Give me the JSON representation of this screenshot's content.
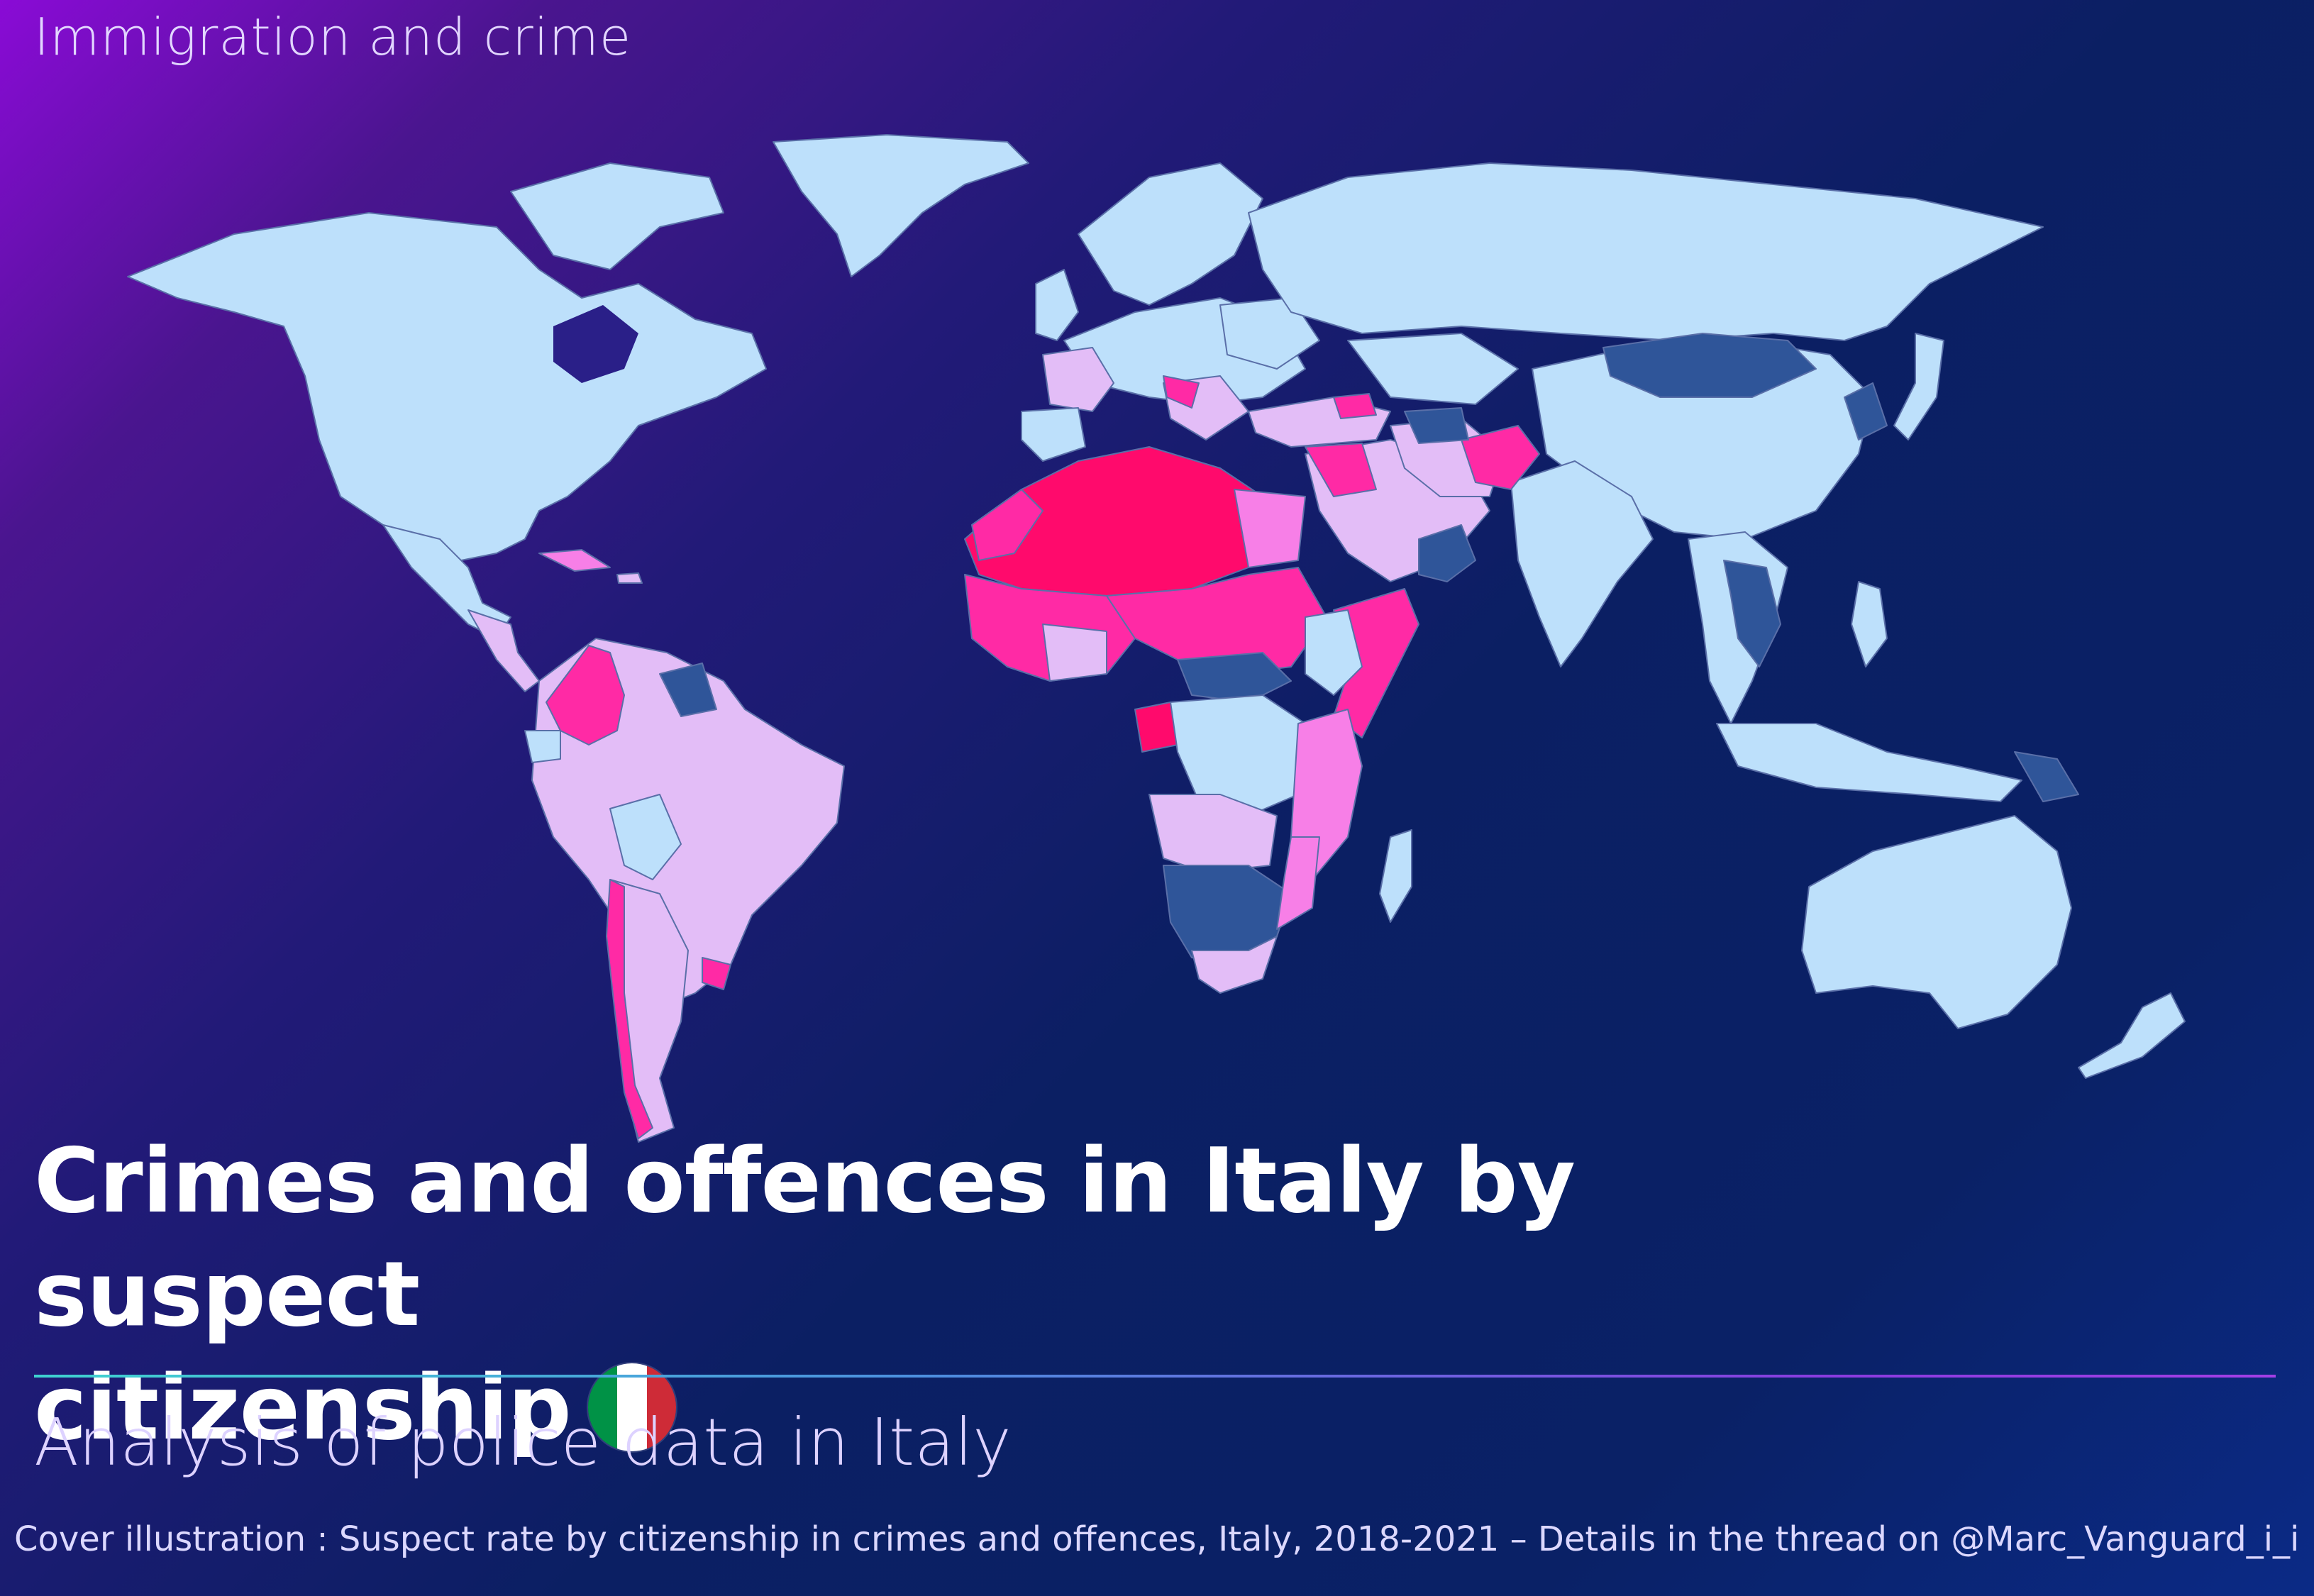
{
  "header": {
    "kicker": "Immigration and crime"
  },
  "title": {
    "line1": "Crimes and offences in Italy by suspect",
    "line2": "citizenship"
  },
  "flag": {
    "name": "italy-flag",
    "colors": [
      "#009246",
      "#ffffff",
      "#ce2b37"
    ]
  },
  "subtitle": "Analysis of police data in Italy",
  "caption": "Cover illustration : Suspect rate by citizenship in crimes and offences, Italy, 2018-2021 – Details in the thread on @Marc_Vanguard_i_i",
  "map": {
    "colors": {
      "dark_blue": "#2f5599",
      "light_blue": "#bde0fb",
      "light_purple": "#e3bdf7",
      "pink": "#f77fe7",
      "hot_pink": "#ff2aa5",
      "deep_pink": "#ff0a6c"
    },
    "dark_blue": [
      "Mongolia",
      "Vietnam",
      "Laos",
      "Cambodia",
      "Japan",
      "Guyana",
      "Suriname",
      "French Guiana",
      "Papua New Guinea",
      "Namibia",
      "Botswana",
      "South Africa",
      "Central African Republic",
      "South Sudan",
      "Mozambique",
      "Oman",
      "Turkmenistan",
      "Korea"
    ],
    "light_purple": [
      "Brazil",
      "Peru",
      "Argentina",
      "Saudi Arabia",
      "Iran",
      "Turkey",
      "Angola",
      "Zambia",
      "Spain",
      "France",
      "Egypt region",
      "Pakistan"
    ],
    "pink": [
      "Chile",
      "Tanzania",
      "Kenya",
      "Madagascar neighbours",
      "Sudan region",
      "Malawi"
    ],
    "hot_pink": [
      "Colombia",
      "Uruguay",
      "Morocco",
      "Tunisia",
      "Mali",
      "Mauritania",
      "Niger",
      "Nigeria",
      "Somalia",
      "Afghanistan",
      "Iraq",
      "Syria",
      "Georgia",
      "Gabon"
    ],
    "deep_pink": [
      "Algeria",
      "Libya",
      "Western Sahara",
      "Senegal",
      "Gambia",
      "Guinea",
      "Chad"
    ]
  }
}
